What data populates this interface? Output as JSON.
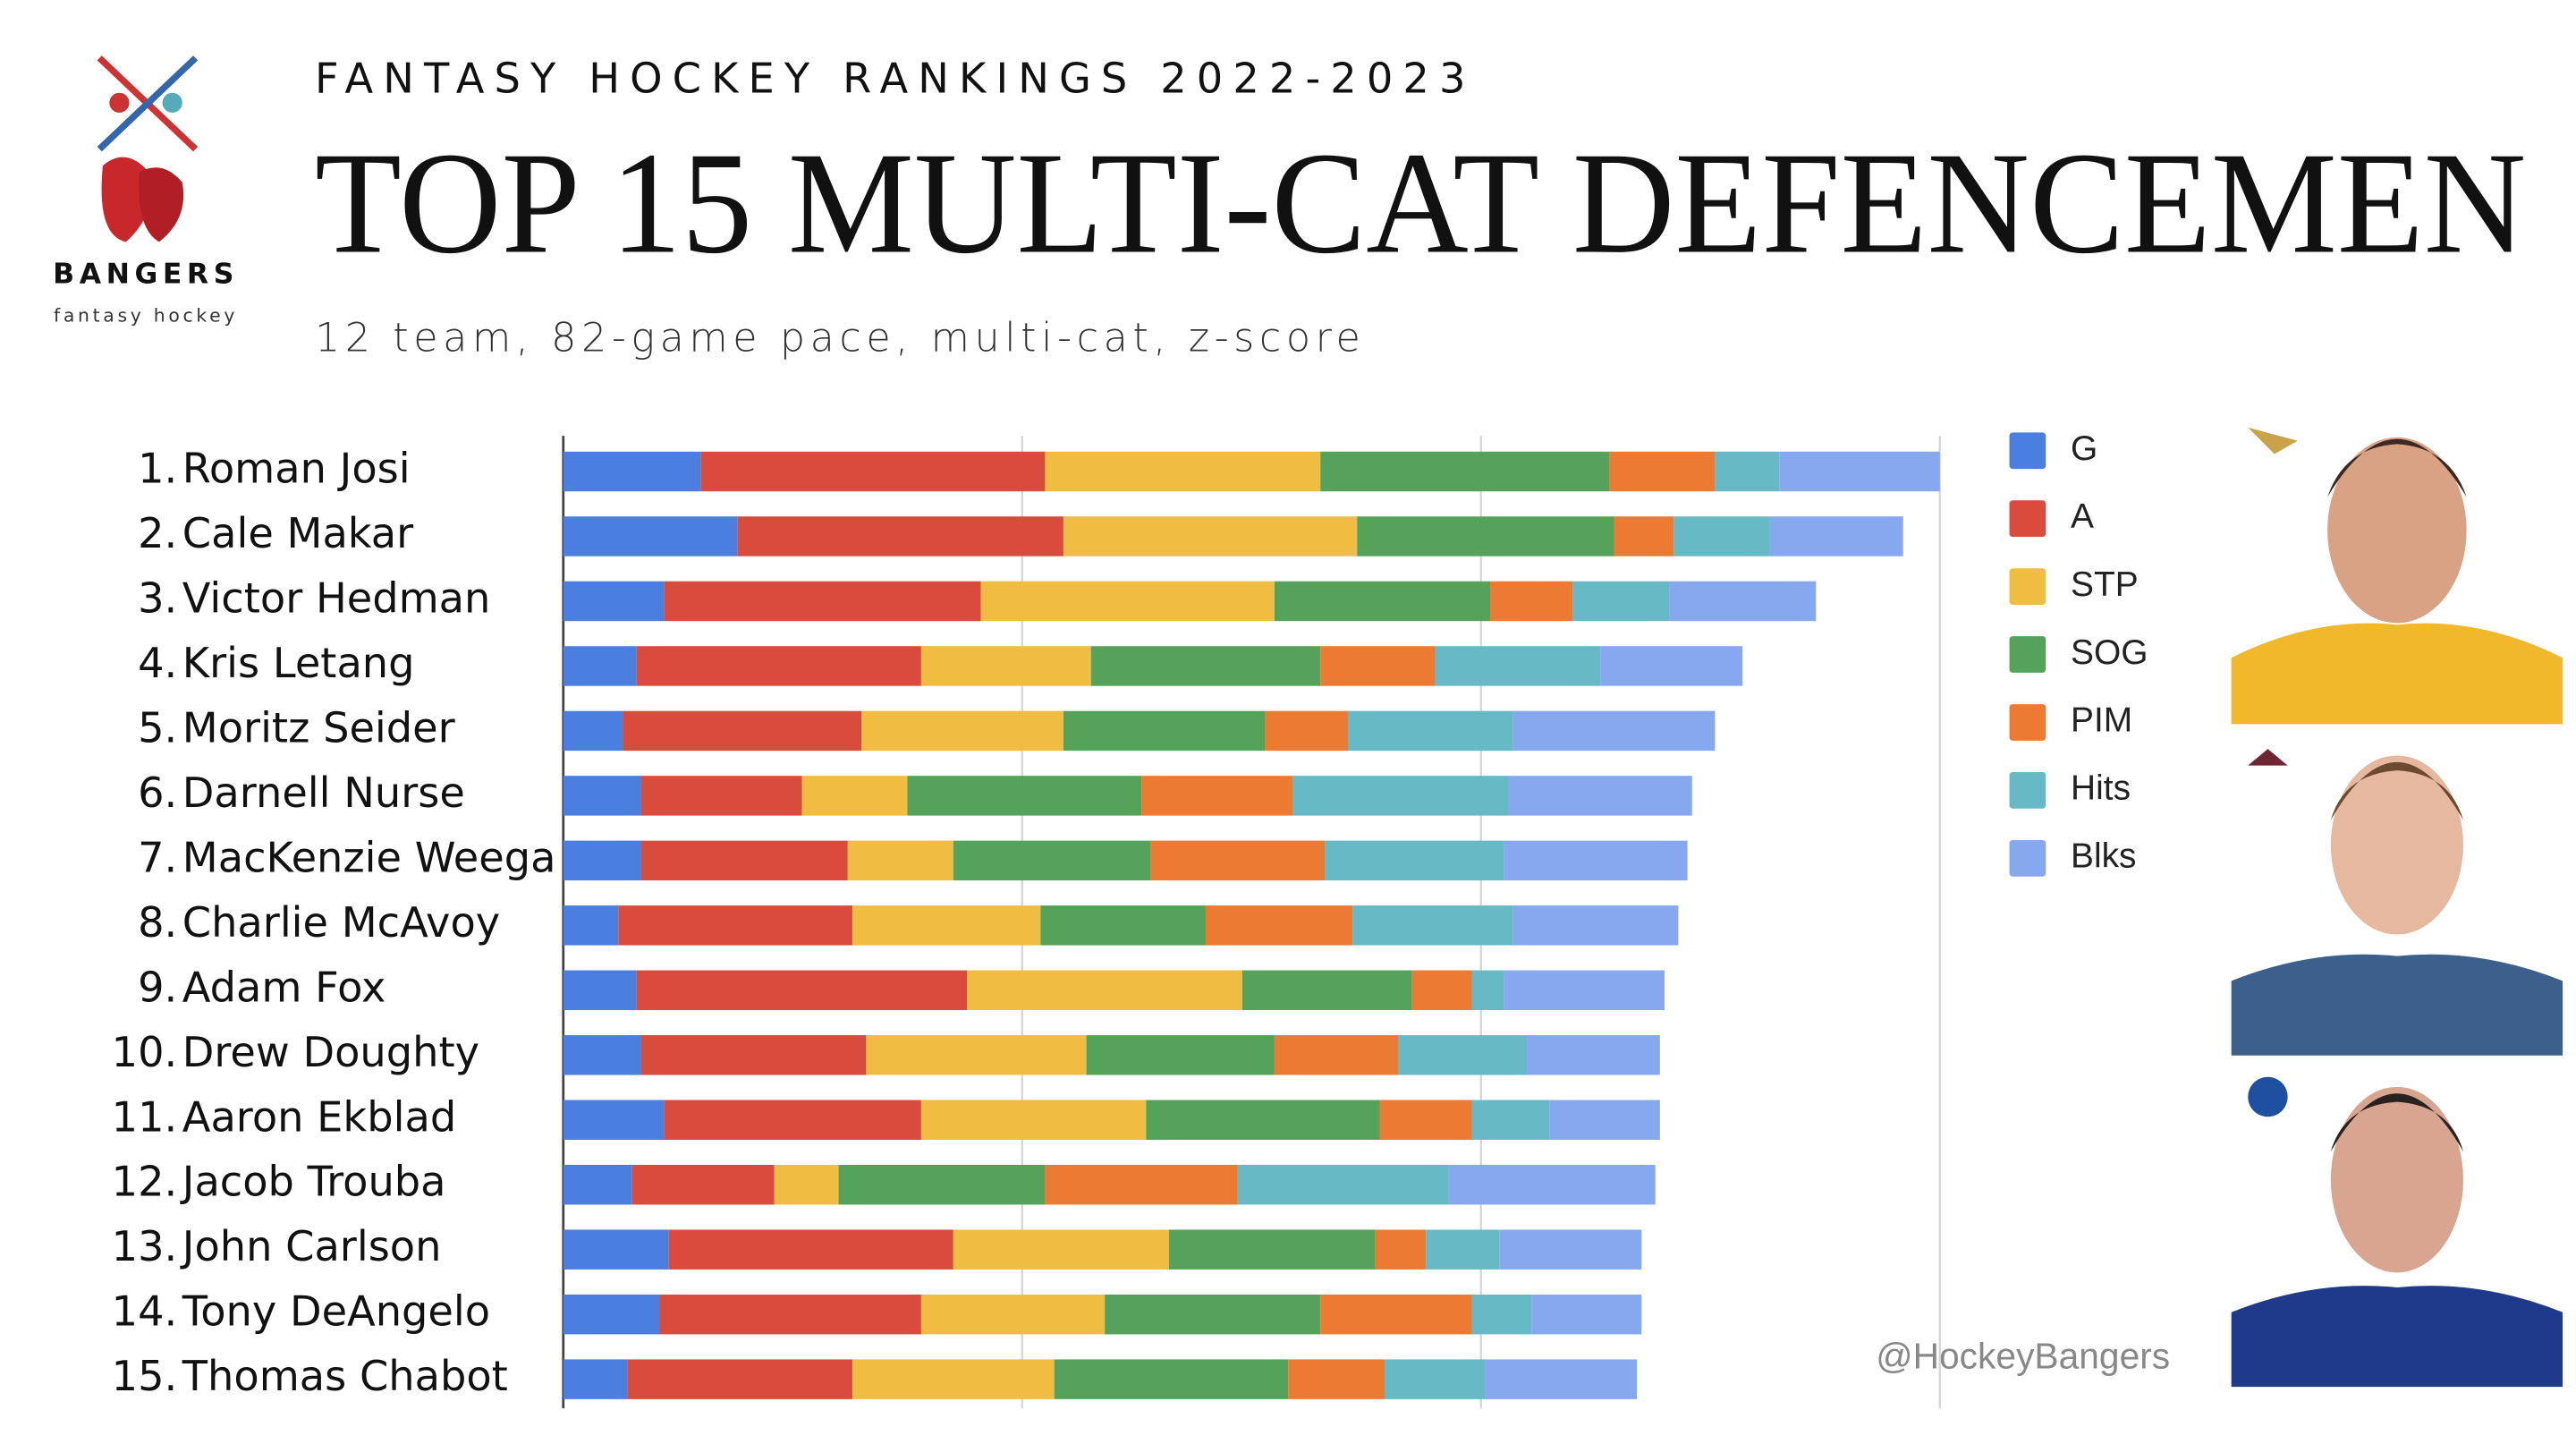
{
  "chart_data": {
    "type": "stacked-bar-horizontal",
    "supertitle": "FANTASY HOCKEY RANKINGS 2022-2023",
    "title": "TOP 15 MULTI-CAT DEFENCEMEN",
    "subtitle": "12 team, 82-game pace, multi-cat, z-score",
    "logo_text": "BANGERS",
    "logo_subtext": "fantasy hockey",
    "credit": "@HockeyBangers",
    "ranks": [
      "1.",
      "2.",
      "3.",
      "4.",
      "5.",
      "6.",
      "7.",
      "8.",
      "9.",
      "10.",
      "11.",
      "12.",
      "13.",
      "14.",
      "15."
    ],
    "categories": [
      "Roman Josi",
      "Cale Makar",
      "Victor Hedman",
      "Kris Letang",
      "Moritz Seider",
      "Darnell Nurse",
      "MacKenzie Weega",
      "Charlie McAvoy",
      "Adam Fox",
      "Drew Doughty",
      "Aaron Ekblad",
      "Jacob Trouba",
      "John Carlson",
      "Tony DeAngelo",
      "Thomas Chabot"
    ],
    "series": [
      {
        "name": "G",
        "color": "#4a7fe0",
        "values": [
          3.0,
          3.8,
          2.2,
          1.6,
          1.3,
          1.7,
          1.7,
          1.2,
          1.6,
          1.7,
          2.2,
          1.5,
          2.3,
          2.1,
          1.4
        ]
      },
      {
        "name": "A",
        "color": "#d94c3d",
        "values": [
          7.5,
          7.1,
          6.9,
          6.2,
          5.2,
          3.5,
          4.5,
          5.1,
          7.2,
          4.9,
          5.6,
          3.1,
          6.2,
          5.7,
          4.9
        ]
      },
      {
        "name": "STP",
        "color": "#f0bc42",
        "values": [
          6.0,
          6.4,
          6.4,
          3.7,
          4.4,
          2.3,
          2.3,
          4.1,
          6.0,
          4.8,
          4.9,
          1.4,
          4.7,
          4.0,
          4.4
        ]
      },
      {
        "name": "SOG",
        "color": "#55a35a",
        "values": [
          6.3,
          5.6,
          4.7,
          5.0,
          4.4,
          5.1,
          4.3,
          3.6,
          3.7,
          4.1,
          5.1,
          4.5,
          4.5,
          4.7,
          5.1
        ]
      },
      {
        "name": "PIM",
        "color": "#ec7a32",
        "values": [
          2.3,
          1.3,
          1.8,
          2.5,
          1.8,
          3.3,
          3.8,
          3.2,
          1.3,
          2.7,
          2.0,
          4.2,
          1.1,
          3.3,
          2.1
        ]
      },
      {
        "name": "Hits",
        "color": "#66b9c5",
        "values": [
          1.4,
          2.1,
          2.1,
          3.6,
          3.6,
          4.7,
          3.9,
          3.5,
          0.7,
          2.8,
          1.7,
          4.6,
          1.6,
          1.3,
          2.2
        ]
      },
      {
        "name": "Blks",
        "color": "#86a8ef",
        "values": [
          3.5,
          2.9,
          3.2,
          3.1,
          4.4,
          4.0,
          4.0,
          3.6,
          3.5,
          2.9,
          2.4,
          4.5,
          3.1,
          2.4,
          3.3
        ]
      }
    ],
    "xlim": [
      0,
      30
    ],
    "xticks": [
      0,
      10,
      20,
      30
    ],
    "grid": true,
    "legend": "right"
  }
}
